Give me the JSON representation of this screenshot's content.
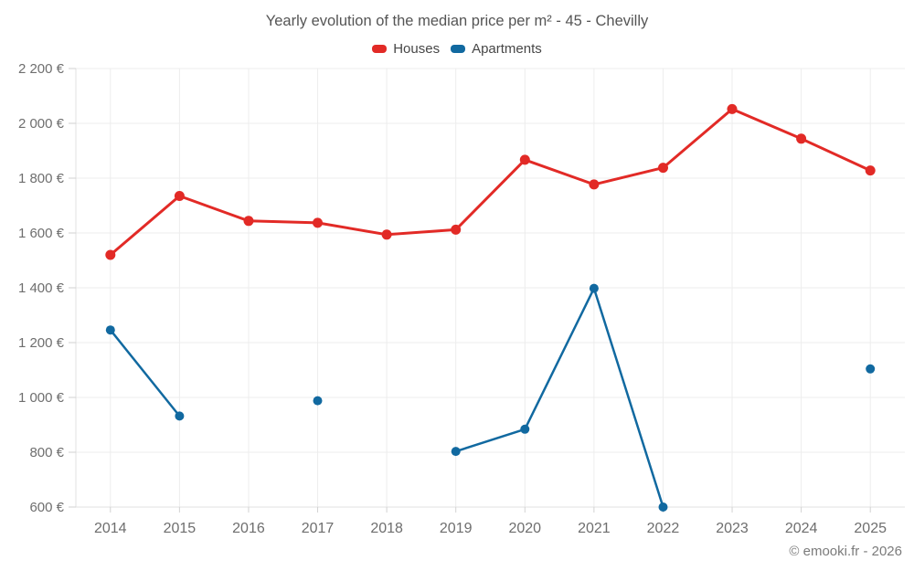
{
  "page": {
    "footer": "© emooki.fr - 2026"
  },
  "chart_data": {
    "type": "line",
    "title": "Yearly evolution of the median price per m² - 45 - Chevilly",
    "x": [
      "2014",
      "2015",
      "2016",
      "2017",
      "2018",
      "2019",
      "2020",
      "2021",
      "2022",
      "2023",
      "2024",
      "2025"
    ],
    "series": [
      {
        "name": "Houses",
        "color": "#e22a26",
        "values": [
          1520,
          1735,
          1644,
          1637,
          1594,
          1612,
          1867,
          1777,
          1838,
          2052,
          1944,
          1828
        ]
      },
      {
        "name": "Apartments",
        "color": "#1169a0",
        "values": [
          1246,
          932,
          null,
          988,
          null,
          803,
          884,
          1398,
          600,
          null,
          null,
          1104
        ]
      }
    ],
    "ylim": [
      600,
      2200
    ],
    "yticks": [
      600,
      800,
      1000,
      1200,
      1400,
      1600,
      1800,
      2000,
      2200
    ],
    "ytick_labels": [
      "600 €",
      "800 €",
      "1 000 €",
      "1 200 €",
      "1 400 €",
      "1 600 €",
      "1 800 €",
      "2 000 €",
      "2 200 €"
    ],
    "xlabel": "",
    "ylabel": "",
    "grid": true,
    "legend_position": "top"
  },
  "colors": {
    "background": "#ffffff",
    "grid": "#ededed",
    "axis": "#e0e0e0",
    "tick": "#d2d2d2",
    "axis_label": "#6e6e6e",
    "title": "#555555",
    "legend_text": "#474747",
    "footer": "#7b7b7b"
  }
}
